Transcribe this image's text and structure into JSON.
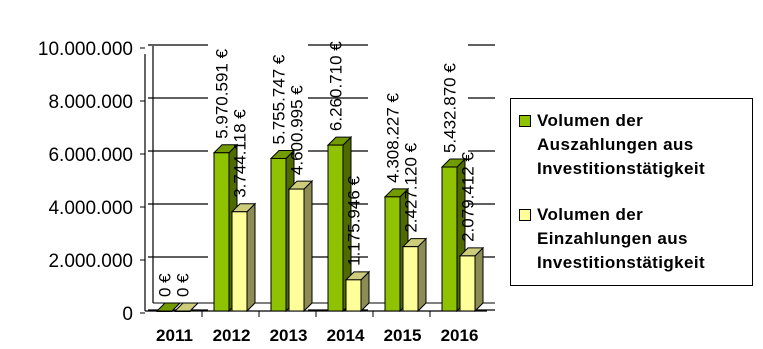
{
  "chart_data": {
    "type": "bar",
    "categories": [
      "2011",
      "2012",
      "2013",
      "2014",
      "2015",
      "2016"
    ],
    "series": [
      {
        "name": "Volumen der Auszahlungen aus Investitionstätigkeit",
        "values": [
          0,
          5970591,
          5755747,
          6260710,
          4308227,
          5432870
        ],
        "labels": [
          "0 €",
          "5.970.591 €",
          "5.755.747 €",
          "6.260.710 €",
          "4.308.227 €",
          "5.432.870 €"
        ],
        "color": "#8fc200"
      },
      {
        "name": "Volumen der Einzahlungen aus Investitionstätigkeit",
        "values": [
          0,
          3744118,
          4600995,
          1175946,
          2427120,
          2079412
        ],
        "labels": [
          "0 €",
          "3.744.118 €",
          "4.600.995 €",
          "1.175.946 €",
          "2.427.120 €",
          "2.079.412 €"
        ],
        "color": "#ffff99"
      }
    ],
    "ylim": [
      0,
      10000000
    ],
    "ytick_values": [
      0,
      2000000,
      4000000,
      6000000,
      8000000,
      10000000
    ],
    "ytick_labels": [
      "0",
      "2.000.000",
      "4.000.000",
      "6.000.000",
      "8.000.000",
      "10.000.000"
    ],
    "grid": true,
    "legend_position": "right",
    "title": "",
    "xlabel": "",
    "ylabel": ""
  },
  "legend": {
    "items": [
      {
        "label": "Volumen der\nAuszahlungen aus\nInvestitionstätigkeit",
        "color": "#8fc200"
      },
      {
        "label": "Volumen der\nEinzahlungen aus\nInvestitionstätigkeit",
        "color": "#ffff99"
      }
    ]
  }
}
